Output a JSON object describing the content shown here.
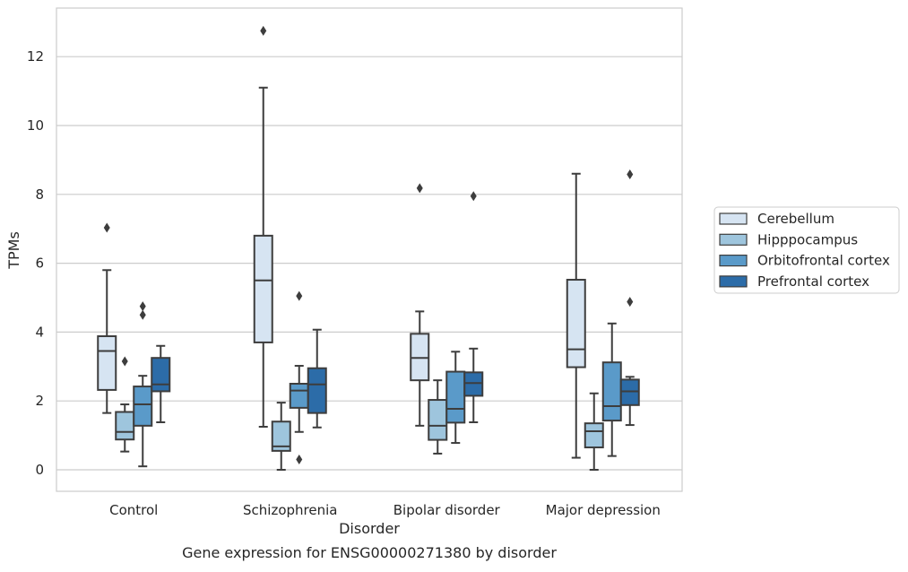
{
  "caption": "Gene expression for ENSG00000271380 by disorder",
  "chart_data": {
    "type": "box",
    "xlabel": "Disorder",
    "ylabel": "TPMs",
    "ylim": [
      -0.6,
      13.4
    ],
    "yticks": [
      0,
      2,
      4,
      6,
      8,
      10,
      12
    ],
    "categories": [
      "Control",
      "Schizophrenia",
      "Bipolar disorder",
      "Major depression"
    ],
    "grid": "horizontal",
    "legend_position": "right",
    "series": [
      {
        "name": "Cerebellum",
        "color": "#d6e4f2",
        "boxes": [
          {
            "whisker_low": 1.65,
            "q1": 2.32,
            "median": 3.45,
            "q3": 3.88,
            "whisker_high": 5.8,
            "outliers": [
              7.03
            ]
          },
          {
            "whisker_low": 1.25,
            "q1": 3.7,
            "median": 5.5,
            "q3": 6.8,
            "whisker_high": 11.1,
            "outliers": [
              12.75
            ]
          },
          {
            "whisker_low": 1.28,
            "q1": 2.6,
            "median": 3.25,
            "q3": 3.95,
            "whisker_high": 4.6,
            "outliers": [
              8.18
            ]
          },
          {
            "whisker_low": 0.35,
            "q1": 2.98,
            "median": 3.5,
            "q3": 5.52,
            "whisker_high": 8.6,
            "outliers": []
          }
        ]
      },
      {
        "name": "Hipppocampus",
        "color": "#9ec5dd",
        "boxes": [
          {
            "whisker_low": 0.53,
            "q1": 0.88,
            "median": 1.1,
            "q3": 1.68,
            "whisker_high": 1.9,
            "outliers": [
              3.15
            ]
          },
          {
            "whisker_low": 0.0,
            "q1": 0.55,
            "median": 0.68,
            "q3": 1.4,
            "whisker_high": 1.95,
            "outliers": []
          },
          {
            "whisker_low": 0.47,
            "q1": 0.87,
            "median": 1.28,
            "q3": 2.03,
            "whisker_high": 2.6,
            "outliers": []
          },
          {
            "whisker_low": 0.0,
            "q1": 0.65,
            "median": 1.12,
            "q3": 1.35,
            "whisker_high": 2.22,
            "outliers": []
          }
        ]
      },
      {
        "name": "Orbitofrontal cortex",
        "color": "#5a9ac9",
        "boxes": [
          {
            "whisker_low": 0.1,
            "q1": 1.28,
            "median": 1.9,
            "q3": 2.42,
            "whisker_high": 2.73,
            "outliers": [
              4.5,
              4.75
            ]
          },
          {
            "whisker_low": 1.1,
            "q1": 1.8,
            "median": 2.3,
            "q3": 2.5,
            "whisker_high": 3.02,
            "outliers": [
              0.3,
              5.05
            ]
          },
          {
            "whisker_low": 0.78,
            "q1": 1.37,
            "median": 1.77,
            "q3": 2.85,
            "whisker_high": 3.43,
            "outliers": []
          },
          {
            "whisker_low": 0.4,
            "q1": 1.43,
            "median": 1.85,
            "q3": 3.12,
            "whisker_high": 4.25,
            "outliers": []
          }
        ]
      },
      {
        "name": "Prefrontal cortex",
        "color": "#2c6ca8",
        "boxes": [
          {
            "whisker_low": 1.38,
            "q1": 2.28,
            "median": 2.48,
            "q3": 3.25,
            "whisker_high": 3.6,
            "outliers": []
          },
          {
            "whisker_low": 1.23,
            "q1": 1.65,
            "median": 2.48,
            "q3": 2.95,
            "whisker_high": 4.07,
            "outliers": []
          },
          {
            "whisker_low": 1.38,
            "q1": 2.15,
            "median": 2.52,
            "q3": 2.83,
            "whisker_high": 3.52,
            "outliers": [
              7.95
            ]
          },
          {
            "whisker_low": 1.3,
            "q1": 1.88,
            "median": 2.28,
            "q3": 2.62,
            "whisker_high": 2.7,
            "outliers": [
              4.88,
              8.58
            ]
          }
        ]
      }
    ]
  }
}
